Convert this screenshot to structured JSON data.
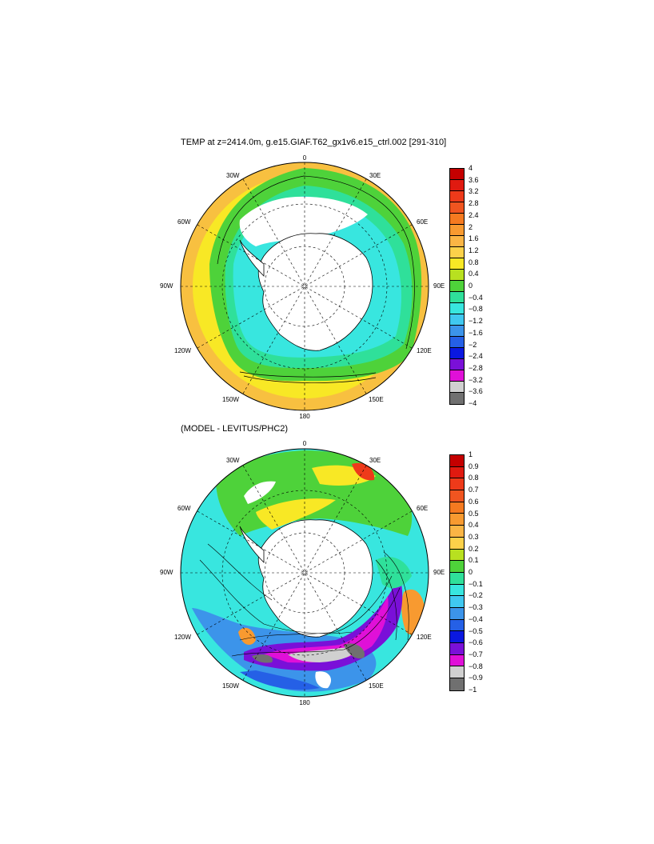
{
  "panels": [
    {
      "title": "TEMP at z=2414.0m, g.e15.GIAF.T62_gx1v6.e15_ctrl.002 [291-310]",
      "lon_labels": {
        "top": "0",
        "tl": "30W",
        "tr": "30E",
        "ul": "60W",
        "ur": "60E",
        "l": "90W",
        "r": "90E",
        "ll": "120W",
        "lr": "120E",
        "bl": "150W",
        "br": "150E",
        "bottom": "180"
      },
      "colorbar": {
        "labels": [
          "4",
          "3.6",
          "3.2",
          "2.8",
          "2.4",
          "2",
          "1.6",
          "1.2",
          "0.8",
          "0.4",
          "0",
          "−0.4",
          "−0.8",
          "−1.2",
          "−1.6",
          "−2",
          "−2.4",
          "−2.8",
          "−3.2",
          "−3.6",
          "−4"
        ],
        "colors": [
          "#c40000",
          "#e01a10",
          "#ee3a1a",
          "#f05520",
          "#f57a20",
          "#f89a30",
          "#fbb545",
          "#fcd14a",
          "#f8e825",
          "#b8e020",
          "#4ed23a",
          "#2fe09a",
          "#38e6df",
          "#40c8f0",
          "#3c94ea",
          "#2560e6",
          "#0a18e0",
          "#7a10d8",
          "#e010d8",
          "#d0d0d0",
          "#707070"
        ]
      }
    },
    {
      "title": "(MODEL - LEVITUS/PHC2)",
      "lon_labels": {
        "top": "0",
        "tl": "30W",
        "tr": "30E",
        "ul": "60W",
        "ur": "60E",
        "l": "90W",
        "r": "90E",
        "ll": "120W",
        "lr": "120E",
        "bl": "150W",
        "br": "150E",
        "bottom": "180"
      },
      "colorbar": {
        "labels": [
          "1",
          "0.9",
          "0.8",
          "0.7",
          "0.6",
          "0.5",
          "0.4",
          "0.3",
          "0.2",
          "0.1",
          "0",
          "−0.1",
          "−0.2",
          "−0.3",
          "−0.4",
          "−0.5",
          "−0.6",
          "−0.7",
          "−0.8",
          "−0.9",
          "−1"
        ],
        "colors": [
          "#c40000",
          "#e01a10",
          "#ee3a1a",
          "#f05520",
          "#f57a20",
          "#f89a30",
          "#fbb545",
          "#fcd14a",
          "#b8e020",
          "#4ed23a",
          "#2fe09a",
          "#38e6df",
          "#40c8f0",
          "#3c94ea",
          "#2560e6",
          "#0a18e0",
          "#7a10d8",
          "#e010d8",
          "#d0d0d0",
          "#707070"
        ]
      }
    }
  ]
}
